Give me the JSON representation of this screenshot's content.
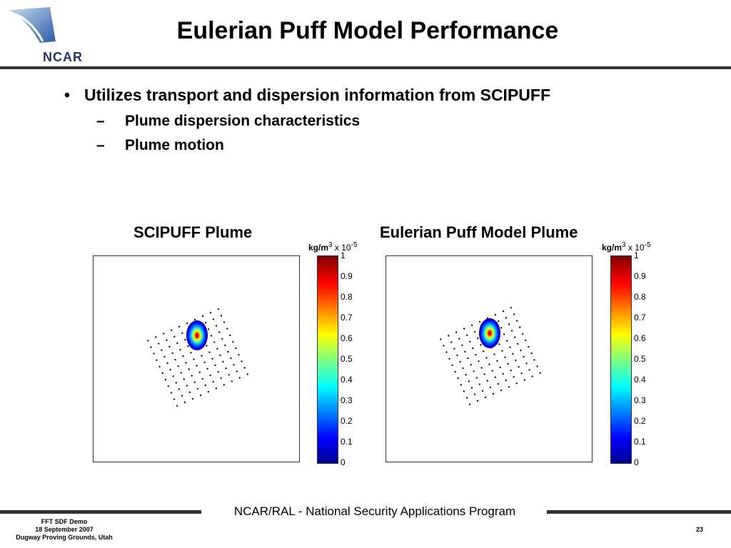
{
  "logo": {
    "text": "NCAR"
  },
  "slide": {
    "title": "Eulerian Puff Model Performance",
    "bullet": "Utilizes transport and dispersion information from SCIPUFF",
    "subbullets": [
      "Plume dispersion characteristics",
      "Plume motion"
    ]
  },
  "plots": {
    "left_title": "SCIPUFF Plume",
    "right_title": "Eulerian Puff Model Plume",
    "units_label": "kg/m",
    "units_exp": "3",
    "scale_text": "x 10",
    "scale_exp": "-5",
    "colorbar_ticks": [
      "1",
      "0.9",
      "0.8",
      "0.7",
      "0.6",
      "0.5",
      "0.4",
      "0.3",
      "0.2",
      "0.1",
      "0"
    ]
  },
  "footer": {
    "center": "NCAR/RAL - National Security Applications Program",
    "left_line1": "FFT SDF Demo",
    "left_line2": "18 September 2007",
    "left_line3": "Dugway Proving Grounds, Utah",
    "page": "23"
  }
}
